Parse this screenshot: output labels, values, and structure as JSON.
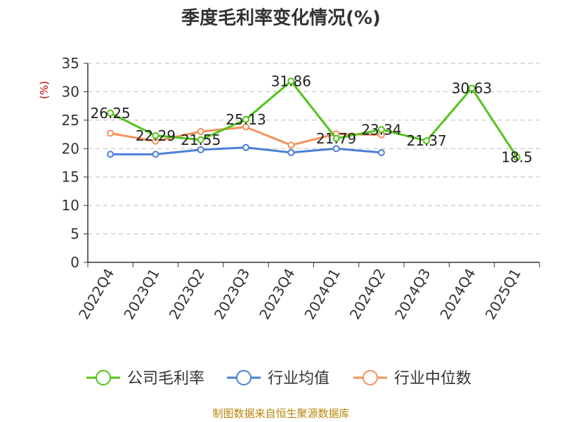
{
  "chart_data": {
    "type": "line",
    "title": "季度毛利率变化情况(%)",
    "ylabel": "(%)",
    "ylim": [
      0,
      35
    ],
    "yticks": [
      0,
      5,
      10,
      15,
      20,
      25,
      30,
      35
    ],
    "grid": true,
    "legend_position": "bottom",
    "categories": [
      "2022Q4",
      "2023Q1",
      "2023Q2",
      "2023Q3",
      "2023Q4",
      "2024Q1",
      "2024Q2",
      "2024Q3",
      "2024Q4",
      "2025Q1"
    ],
    "series": [
      {
        "name": "公司毛利率",
        "color": "#52c41a",
        "values": [
          26.25,
          22.29,
          21.55,
          25.13,
          31.86,
          21.79,
          23.34,
          21.37,
          30.63,
          18.5
        ],
        "labels": [
          "26.25",
          "22.29",
          "21.55",
          "25.13",
          "31.86",
          "21.79",
          "23.34",
          "21.37",
          "30.63",
          "18.5"
        ]
      },
      {
        "name": "行业均值",
        "color": "#4a7fd8",
        "values": [
          19.0,
          19.0,
          19.8,
          20.2,
          19.3,
          20.0,
          19.3,
          null,
          null,
          null
        ]
      },
      {
        "name": "行业中位数",
        "color": "#f4915a",
        "values": [
          22.7,
          21.3,
          23.0,
          23.8,
          20.6,
          22.6,
          22.4,
          null,
          null,
          null
        ]
      }
    ],
    "source": "制图数据来自恒生聚源数据库"
  }
}
